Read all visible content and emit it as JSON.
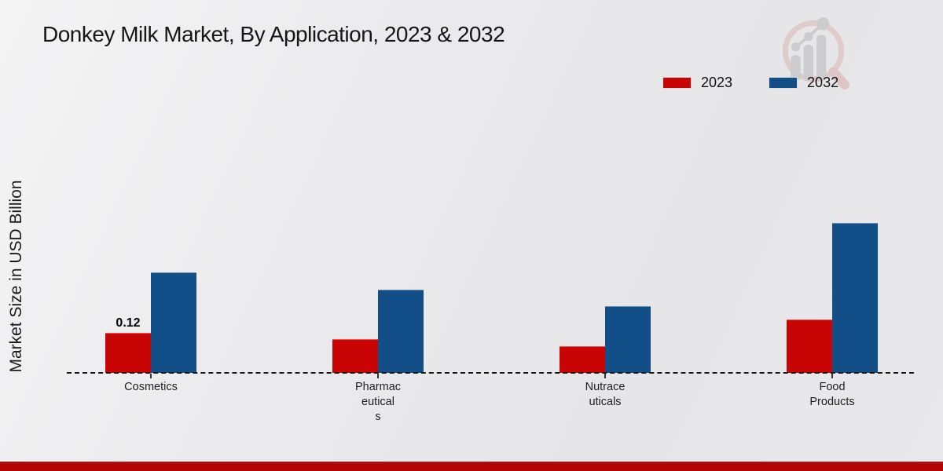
{
  "header": {
    "title": "Donkey Milk Market, By Application, 2023 & 2032"
  },
  "watermark": {
    "name": "magnifier-trend-logo",
    "ring_color": "#dfc7c6",
    "bars_color": "#c8c8ca"
  },
  "chart_data": {
    "type": "bar",
    "title": "Donkey Milk Market, By Application, 2023 & 2032",
    "xlabel": "",
    "ylabel": "Market Size in USD Billion",
    "categories": [
      "Cosmetics",
      "Pharmaceuticals",
      "Nutraceuticals",
      "Food Products"
    ],
    "category_tick_labels": [
      "Cosmetics",
      "Pharmac\neutical\ns",
      "Nutrace\nuticals",
      "Food\nProducts"
    ],
    "series": [
      {
        "name": "2023",
        "color": "#c90404",
        "values": [
          0.12,
          0.1,
          0.08,
          0.16
        ]
      },
      {
        "name": "2032",
        "color": "#124e87",
        "values": [
          0.3,
          0.25,
          0.2,
          0.45
        ]
      }
    ],
    "bar_value_labels": [
      {
        "series_index": 0,
        "category_index": 0,
        "text": "0.12"
      }
    ],
    "ylim": [
      0,
      0.55
    ],
    "grid": false,
    "legend_position": "top-right",
    "baseline_style": "dashed",
    "y_axis_ticks_visible": false
  },
  "footer": {
    "band_color": "#b30303"
  }
}
